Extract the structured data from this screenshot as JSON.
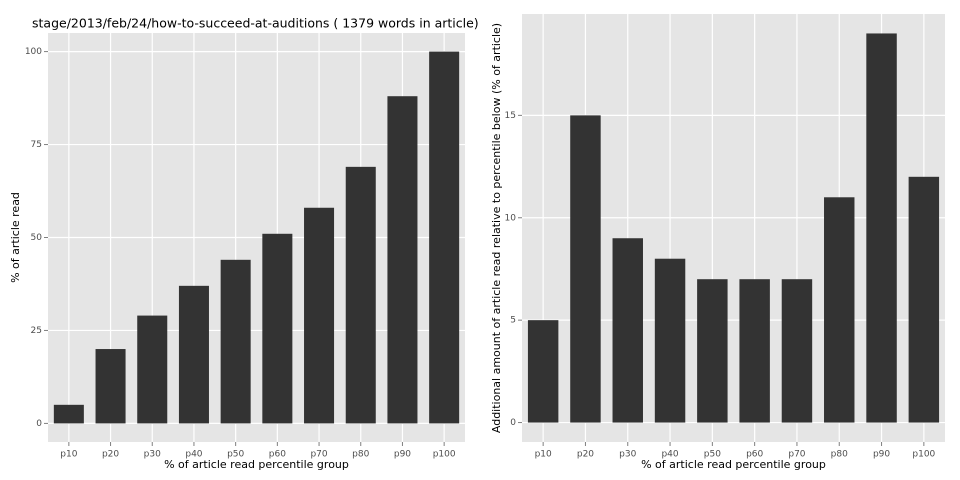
{
  "chart_data": [
    {
      "type": "bar",
      "title": "stage/2013/feb/24/how-to-succeed-at-auditions ( 1379 words in article)",
      "x_label": "% of article read percentile group",
      "y_label": "% of article read",
      "categories": [
        "p10",
        "p20",
        "p30",
        "p40",
        "p50",
        "p60",
        "p70",
        "p80",
        "p90",
        "p100"
      ],
      "values": [
        5,
        20,
        29,
        37,
        44,
        51,
        58,
        69,
        88,
        100
      ],
      "color": "#333333",
      "ylim": [
        -5,
        105
      ],
      "yticks": [
        0,
        25,
        50,
        75,
        100
      ],
      "grid": true
    },
    {
      "type": "bar",
      "x_label": "% of article read percentile group",
      "y_label": "Additional amount of article read relative to percentile below (% of article)",
      "categories": [
        "p10",
        "p20",
        "p30",
        "p40",
        "p50",
        "p60",
        "p70",
        "p80",
        "p90",
        "p100"
      ],
      "values": [
        5,
        15,
        9,
        8,
        7,
        7,
        7,
        11,
        19,
        12
      ],
      "color": "#333333",
      "ylim": [
        -0.95,
        19.95
      ],
      "yticks": [
        0,
        5,
        10,
        15
      ],
      "grid": true
    }
  ]
}
